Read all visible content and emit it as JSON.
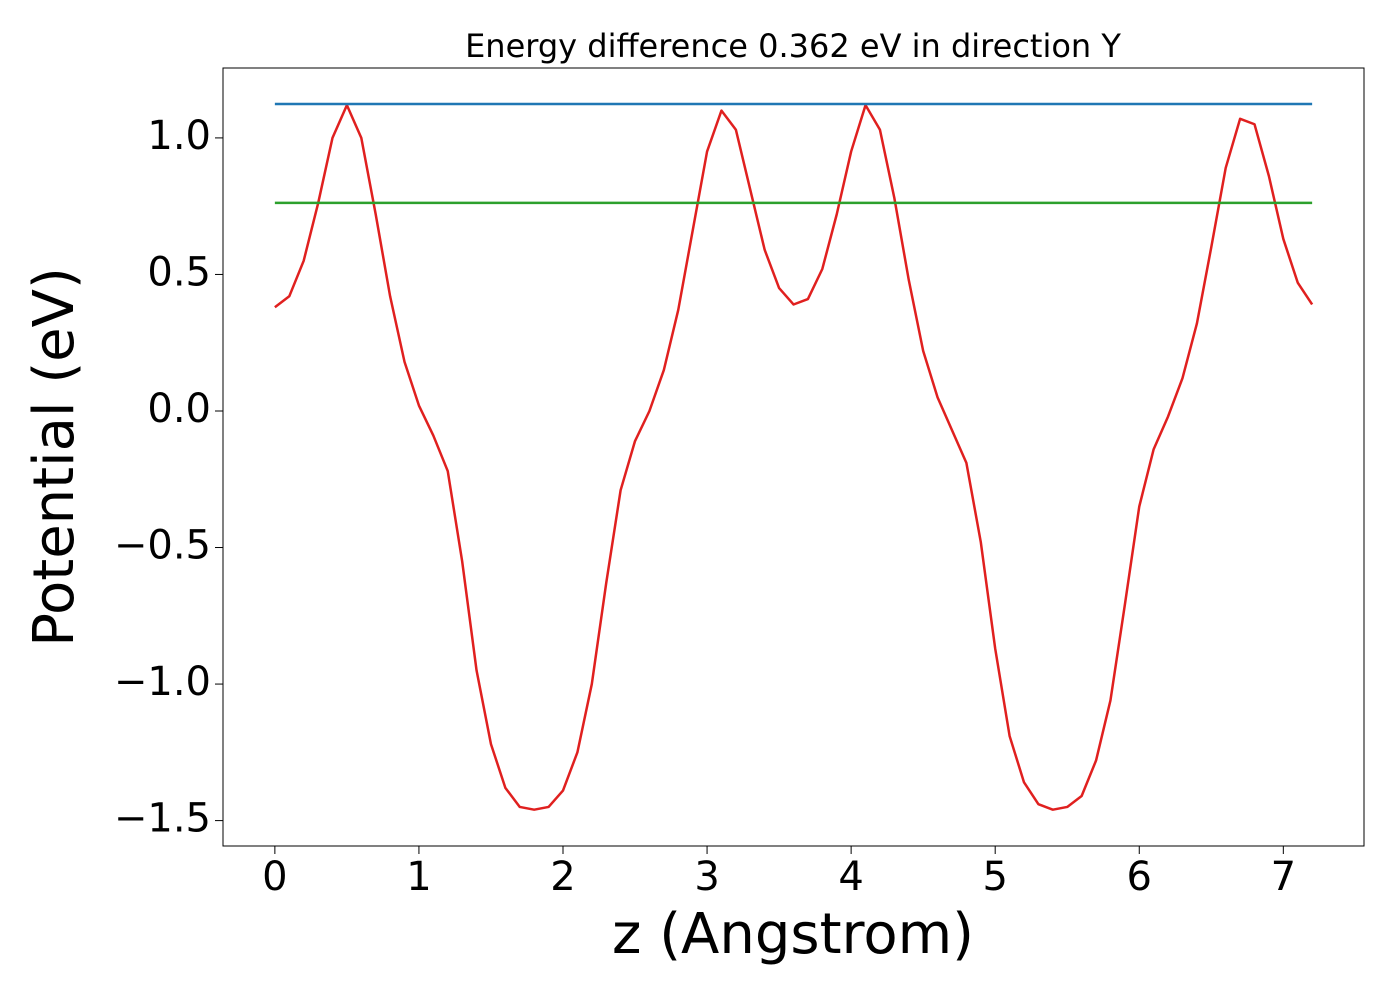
{
  "chart_data": {
    "type": "line",
    "title": "Energy difference 0.362 eV in direction Y",
    "xlabel": "z (Angstrom)",
    "ylabel": "Potential (eV)",
    "xlim": [
      -0.36,
      7.56
    ],
    "ylim": [
      -1.593,
      1.256
    ],
    "xticks": [
      0,
      1,
      2,
      3,
      4,
      5,
      6,
      7
    ],
    "yticks": [
      {
        "value": -1.5,
        "label": "−1.5"
      },
      {
        "value": -1,
        "label": "−1.0"
      },
      {
        "value": -0.5,
        "label": "−0.5"
      },
      {
        "value": 0,
        "label": "0.0"
      },
      0.5,
      {
        "value": 1,
        "label": "1.0"
      }
    ],
    "grid": false,
    "series": [
      {
        "color": "#e0201f",
        "x": [
          0,
          0.1,
          0.2,
          0.3,
          0.4,
          0.5,
          0.6,
          0.7,
          0.8,
          0.9,
          1.0,
          1.1,
          1.2,
          1.3,
          1.4,
          1.5,
          1.6,
          1.7,
          1.8,
          1.9,
          2.0,
          2.1,
          2.2,
          2.3,
          2.4,
          2.5,
          2.6,
          2.7,
          2.8,
          2.9,
          3.0,
          3.1,
          3.2,
          3.3,
          3.4,
          3.5,
          3.6,
          3.7,
          3.8,
          3.9,
          4.0,
          4.1,
          4.2,
          4.3,
          4.4,
          4.5,
          4.6,
          4.7,
          4.8,
          4.9,
          5.0,
          5.1,
          5.2,
          5.3,
          5.4,
          5.5,
          5.6,
          5.7,
          5.8,
          5.9,
          6.0,
          6.1,
          6.2,
          6.3,
          6.4,
          6.5,
          6.6,
          6.7,
          6.8,
          6.9,
          7.0,
          7.1,
          7.2
        ],
        "values": [
          0.38,
          0.42,
          0.55,
          0.76,
          1.0,
          1.12,
          1.0,
          0.72,
          0.42,
          0.18,
          0.02,
          -0.09,
          -0.22,
          -0.55,
          -0.95,
          -1.22,
          -1.38,
          -1.45,
          -1.46,
          -1.45,
          -1.39,
          -1.25,
          -1.0,
          -0.63,
          -0.29,
          -0.11,
          0.0,
          0.15,
          0.37,
          0.66,
          0.95,
          1.1,
          1.03,
          0.81,
          0.59,
          0.45,
          0.39,
          0.41,
          0.52,
          0.72,
          0.95,
          1.12,
          1.03,
          0.78,
          0.48,
          0.22,
          0.05,
          -0.07,
          -0.19,
          -0.48,
          -0.87,
          -1.19,
          -1.36,
          -1.44,
          -1.46,
          -1.45,
          -1.41,
          -1.28,
          -1.06,
          -0.71,
          -0.35,
          -0.14,
          -0.02,
          0.12,
          0.32,
          0.6,
          0.89,
          1.07,
          1.05,
          0.86,
          0.63,
          0.47,
          0.39
        ]
      },
      {
        "color": "#1f77b4",
        "x": [
          0,
          7.2
        ],
        "values": [
          1.124,
          1.124
        ]
      },
      {
        "color": "#2ca02c",
        "x": [
          0,
          7.2
        ],
        "values": [
          0.762,
          0.762
        ]
      }
    ]
  }
}
